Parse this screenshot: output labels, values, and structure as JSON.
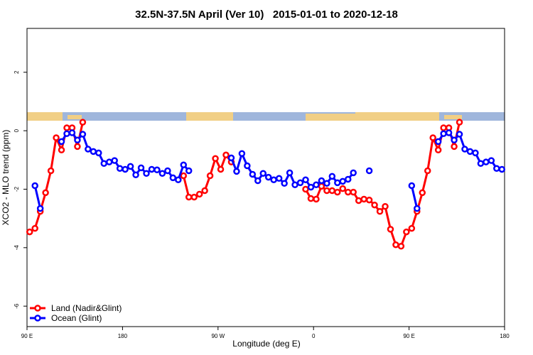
{
  "chart_data": {
    "type": "line",
    "title": "32.5N-37.5N April (Ver 10)   2015-01-01 to 2020-12-18",
    "xlabel": "Longitude (deg E)",
    "ylabel": "XCO2 - MLO trend (ppm)",
    "xlim": [
      90,
      540
    ],
    "ylim": [
      -6.7,
      3.5
    ],
    "xticks": [
      {
        "value": 90,
        "label": "90 E"
      },
      {
        "value": 180,
        "label": "180"
      },
      {
        "value": 270,
        "label": "90 W"
      },
      {
        "value": 360,
        "label": "0"
      },
      {
        "value": 450,
        "label": "90 E"
      },
      {
        "value": 540,
        "label": "180"
      }
    ],
    "yticks": [
      2,
      0,
      -2,
      -4,
      -6
    ],
    "legend": "bottom-left",
    "x": [
      92.5,
      97.5,
      102.5,
      107.5,
      112.5,
      117.5,
      122.5,
      127.5,
      132.5,
      137.5,
      142.5,
      147.5,
      152.5,
      157.5,
      162.5,
      167.5,
      172.5,
      177.5,
      182.5,
      187.5,
      192.5,
      197.5,
      202.5,
      207.5,
      212.5,
      217.5,
      222.5,
      227.5,
      232.5,
      237.5,
      242.5,
      247.5,
      252.5,
      257.5,
      262.5,
      267.5,
      272.5,
      277.5,
      282.5,
      287.5,
      292.5,
      297.5,
      302.5,
      307.5,
      312.5,
      317.5,
      322.5,
      327.5,
      332.5,
      337.5,
      342.5,
      347.5,
      352.5,
      357.5,
      362.5,
      367.5,
      372.5,
      377.5,
      382.5,
      387.5,
      392.5,
      397.5,
      402.5,
      407.5,
      412.5,
      417.5,
      422.5,
      427.5,
      432.5,
      437.5,
      442.5,
      447.5,
      452.5,
      457.5,
      462.5,
      467.5,
      472.5,
      477.5,
      482.5,
      487.5,
      492.5,
      497.5,
      502.5,
      507.5,
      512.5,
      517.5,
      522.5,
      527.5,
      532.5,
      537.5
    ],
    "series": [
      {
        "name": "Land (Nadir&Glint)",
        "color": "#ff0000",
        "values": [
          -3.46,
          -3.34,
          -2.76,
          -2.12,
          -1.37,
          -0.24,
          -0.66,
          0.1,
          0.1,
          -0.54,
          0.29,
          null,
          null,
          null,
          null,
          null,
          null,
          null,
          null,
          null,
          null,
          null,
          null,
          null,
          null,
          null,
          null,
          null,
          null,
          -1.54,
          -2.27,
          -2.27,
          -2.17,
          -2.05,
          -1.54,
          -0.95,
          -1.32,
          -0.83,
          -1.07,
          null,
          null,
          null,
          null,
          null,
          null,
          null,
          null,
          null,
          null,
          null,
          null,
          null,
          -2.0,
          -2.32,
          -2.34,
          -1.9,
          -2.05,
          -2.05,
          -2.1,
          -1.98,
          -2.1,
          -2.1,
          -2.39,
          -2.34,
          -2.37,
          -2.54,
          -2.76,
          -2.59,
          -3.37,
          -3.9,
          -3.95,
          -3.46,
          -3.34,
          -2.76,
          -2.12,
          -1.37,
          -0.24,
          -0.66,
          0.1,
          0.1,
          -0.54,
          0.29,
          null,
          null,
          null,
          null,
          null,
          null,
          null,
          null
        ]
      },
      {
        "name": "Ocean (Glint)",
        "color": "#0000ff",
        "values": [
          null,
          -1.88,
          -2.66,
          null,
          null,
          null,
          -0.37,
          -0.1,
          -0.07,
          -0.32,
          -0.12,
          -0.63,
          -0.71,
          -0.76,
          -1.12,
          -1.07,
          -1.02,
          -1.29,
          -1.32,
          -1.22,
          -1.51,
          -1.27,
          -1.46,
          -1.32,
          -1.34,
          -1.46,
          -1.37,
          -1.61,
          -1.68,
          -1.17,
          -1.37,
          null,
          null,
          null,
          null,
          null,
          null,
          null,
          -0.93,
          -1.39,
          -0.78,
          -1.2,
          -1.49,
          -1.71,
          -1.46,
          -1.59,
          -1.68,
          -1.63,
          -1.8,
          -1.44,
          -1.85,
          -1.78,
          -1.68,
          -1.93,
          -1.85,
          -1.71,
          -1.8,
          -1.56,
          -1.78,
          -1.73,
          -1.66,
          -1.44,
          null,
          null,
          -1.37,
          null,
          null,
          null,
          null,
          null,
          null,
          null,
          -1.88,
          -2.66,
          null,
          null,
          null,
          -0.37,
          -0.1,
          -0.07,
          -0.32,
          -0.12,
          -0.63,
          -0.71,
          -0.76,
          -1.12,
          -1.07,
          -1.02,
          -1.29,
          -1.32
        ]
      }
    ]
  }
}
